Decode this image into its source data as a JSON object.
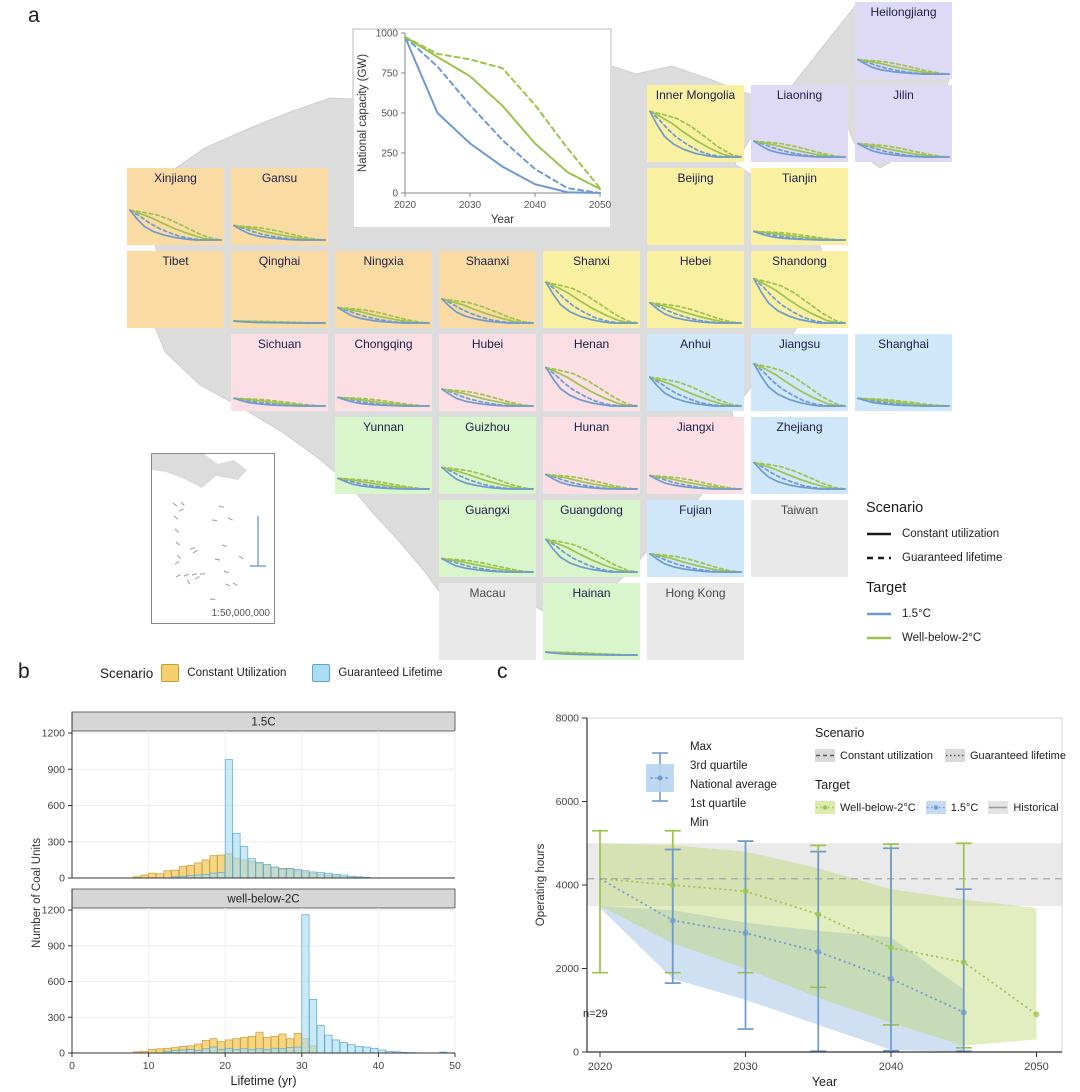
{
  "figure": {
    "panel_a_label": "a",
    "panel_b_label": "b",
    "panel_c_label": "c"
  },
  "colors": {
    "target_blue": "#6f9ad0",
    "target_green": "#9dc34c",
    "map_gray": "#dcdcdc",
    "region_fills": {
      "northwest": "#fbdba4",
      "north": "#f9f0a2",
      "northeast": "#ded9f4",
      "central": "#fbdfe4",
      "east": "#cfe7f8",
      "south": "#d9f5cc",
      "other": "#e9e9e9"
    },
    "hist_orange_fill": "#f5cf6e",
    "hist_orange_stroke": "#c79b33",
    "hist_blue_fill": "#aadcf2",
    "hist_blue_stroke": "#58a8cf",
    "strip_gray": "#d6d6d6",
    "historical_gray": "#d9d9d9"
  },
  "panel_a": {
    "legend": {
      "scenario_title": "Scenario",
      "items": [
        {
          "label": "Constant utilization",
          "style": "solid"
        },
        {
          "label": "Guaranteed lifetime",
          "style": "dashed"
        }
      ],
      "target_title": "Target",
      "targets": [
        {
          "label": "1.5°C",
          "color": "blue"
        },
        {
          "label": "Well-below-2°C",
          "color": "green"
        }
      ]
    },
    "inset_map": {
      "scale_label": "1:50,000,000"
    },
    "tiles": [
      {
        "name": "Heilongjiang",
        "group": "northeast",
        "col": 7,
        "row": 0,
        "mag": 0.3
      },
      {
        "name": "Inner Mongolia",
        "group": "north",
        "col": 5,
        "row": 1,
        "mag": 0.95
      },
      {
        "name": "Liaoning",
        "group": "northeast",
        "col": 6,
        "row": 1,
        "mag": 0.33
      },
      {
        "name": "Jilin",
        "group": "northeast",
        "col": 7,
        "row": 1,
        "mag": 0.28
      },
      {
        "name": "Xinjiang",
        "group": "northwest",
        "col": 0,
        "row": 2,
        "mag": 0.62
      },
      {
        "name": "Gansu",
        "group": "northwest",
        "col": 1,
        "row": 2,
        "mag": 0.3
      },
      {
        "name": "Beijing",
        "group": "north",
        "col": 5,
        "row": 2,
        "mag": 0
      },
      {
        "name": "Tianjin",
        "group": "north",
        "col": 6,
        "row": 2,
        "mag": 0.18
      },
      {
        "name": "Tibet",
        "group": "northwest",
        "col": 0,
        "row": 3,
        "mag": 0
      },
      {
        "name": "Qinghai",
        "group": "northwest",
        "col": 1,
        "row": 3,
        "mag": 0.04
      },
      {
        "name": "Ningxia",
        "group": "northwest",
        "col": 2,
        "row": 3,
        "mag": 0.32
      },
      {
        "name": "Shaanxi",
        "group": "northwest",
        "col": 3,
        "row": 3,
        "mag": 0.5
      },
      {
        "name": "Shanxi",
        "group": "north",
        "col": 4,
        "row": 3,
        "mag": 0.85
      },
      {
        "name": "Hebei",
        "group": "north",
        "col": 5,
        "row": 3,
        "mag": 0.42
      },
      {
        "name": "Shandong",
        "group": "north",
        "col": 6,
        "row": 3,
        "mag": 0.92
      },
      {
        "name": "Sichuan",
        "group": "central",
        "col": 1,
        "row": 4,
        "mag": 0.16
      },
      {
        "name": "Chongqing",
        "group": "central",
        "col": 2,
        "row": 4,
        "mag": 0.18
      },
      {
        "name": "Hubei",
        "group": "central",
        "col": 3,
        "row": 4,
        "mag": 0.35
      },
      {
        "name": "Henan",
        "group": "central",
        "col": 4,
        "row": 4,
        "mag": 0.8
      },
      {
        "name": "Anhui",
        "group": "east",
        "col": 5,
        "row": 4,
        "mag": 0.6
      },
      {
        "name": "Jiangsu",
        "group": "east",
        "col": 6,
        "row": 4,
        "mag": 0.88
      },
      {
        "name": "Shanghai",
        "group": "east",
        "col": 7,
        "row": 4,
        "mag": 0.16
      },
      {
        "name": "Yunnan",
        "group": "south",
        "col": 2,
        "row": 5,
        "mag": 0.22
      },
      {
        "name": "Guizhou",
        "group": "south",
        "col": 3,
        "row": 5,
        "mag": 0.45
      },
      {
        "name": "Hunan",
        "group": "central",
        "col": 4,
        "row": 5,
        "mag": 0.3
      },
      {
        "name": "Jiangxi",
        "group": "central",
        "col": 5,
        "row": 5,
        "mag": 0.28
      },
      {
        "name": "Zhejiang",
        "group": "east",
        "col": 6,
        "row": 5,
        "mag": 0.55
      },
      {
        "name": "Guangxi",
        "group": "south",
        "col": 3,
        "row": 6,
        "mag": 0.28
      },
      {
        "name": "Guangdong",
        "group": "south",
        "col": 4,
        "row": 6,
        "mag": 0.68
      },
      {
        "name": "Fujian",
        "group": "east",
        "col": 5,
        "row": 6,
        "mag": 0.38
      },
      {
        "name": "Taiwan",
        "group": "other",
        "col": 6,
        "row": 6,
        "mag": 0
      },
      {
        "name": "Macau",
        "group": "other",
        "col": 3,
        "row": 7,
        "mag": 0
      },
      {
        "name": "Hainan",
        "group": "south",
        "col": 4,
        "row": 7,
        "mag": 0.06
      },
      {
        "name": "Hong Kong",
        "group": "other",
        "col": 5,
        "row": 7,
        "mag": 0
      }
    ]
  },
  "panel_b": {
    "legend_title": "Scenario",
    "legend_items": [
      "Constant Utilization",
      "Guaranteed Lifetime"
    ]
  },
  "panel_c": {
    "legend": {
      "box_labels": [
        "Max",
        "3rd quartile",
        "National average",
        "1st quartile",
        "Min"
      ],
      "scenario_title": "Scenario",
      "scenario_items": [
        "Constant utilization",
        "Guaranteed lifetime"
      ],
      "target_title": "Target",
      "target_items": [
        "Well-below-2°C",
        "1.5°C",
        "Historical"
      ],
      "n_label": "n=29"
    }
  },
  "chart_data": [
    {
      "id": "national_capacity",
      "type": "line",
      "xlabel": "Year",
      "ylabel": "National capacity (GW)",
      "xlim": [
        2019,
        2051
      ],
      "ylim": [
        0,
        1000
      ],
      "xticks": [
        2020,
        2030,
        2040,
        2050
      ],
      "yticks": [
        0,
        250,
        500,
        750,
        1000
      ],
      "x": [
        2020,
        2025,
        2030,
        2035,
        2040,
        2045,
        2050
      ],
      "series": [
        {
          "name": "1.5C constant utilization",
          "color": "blue",
          "dash": "solid",
          "values": [
            975,
            500,
            310,
            165,
            55,
            5,
            0
          ]
        },
        {
          "name": "1.5C guaranteed lifetime",
          "color": "blue",
          "dash": "dashed",
          "values": [
            975,
            790,
            550,
            330,
            150,
            30,
            0
          ]
        },
        {
          "name": "well-below-2C constant utilization",
          "color": "green",
          "dash": "solid",
          "values": [
            975,
            850,
            730,
            545,
            310,
            130,
            25
          ]
        },
        {
          "name": "well-below-2C guaranteed lifetime",
          "color": "green",
          "dash": "dashed",
          "values": [
            975,
            870,
            835,
            780,
            550,
            280,
            30
          ]
        }
      ]
    },
    {
      "id": "lifetime_histograms",
      "type": "bar",
      "xlabel": "Lifetime (yr)",
      "ylabel": "Number of Coal Units",
      "xlim": [
        0,
        50
      ],
      "ylim": [
        0,
        1200
      ],
      "xticks": [
        0,
        10,
        20,
        30,
        40,
        50
      ],
      "yticks": [
        0,
        300,
        600,
        900,
        1200
      ],
      "bin_width": 1,
      "facets": [
        {
          "label": "1.5C",
          "series": [
            {
              "name": "Constant Utilization",
              "color": "orange",
              "bin_start": 8,
              "values": [
                10,
                25,
                40,
                35,
                60,
                65,
                95,
                105,
                125,
                150,
                185,
                190,
                200,
                165,
                150,
                140,
                120,
                110,
                90,
                80,
                70,
                60,
                50,
                40,
                30,
                20,
                15,
                10,
                5,
                5
              ]
            },
            {
              "name": "Guaranteed Lifetime",
              "color": "blue",
              "bin_start": 13,
              "values": [
                10,
                15,
                20,
                25,
                30,
                40,
                45,
                980,
                370,
                260,
                160,
                130,
                110,
                90,
                75,
                80,
                70,
                60,
                50,
                45,
                40,
                30,
                25,
                15,
                10,
                5
              ]
            }
          ]
        },
        {
          "label": "well-below-2C",
          "series": [
            {
              "name": "Constant Utilization",
              "color": "orange",
              "bin_start": 8,
              "values": [
                10,
                15,
                30,
                35,
                40,
                45,
                55,
                60,
                75,
                105,
                120,
                95,
                110,
                120,
                130,
                140,
                175,
                130,
                140,
                160,
                120,
                165,
                120,
                60
              ]
            },
            {
              "name": "Guaranteed Lifetime",
              "color": "blue",
              "bin_start": 12,
              "values": [
                15,
                20,
                25,
                30,
                20,
                35,
                50,
                30,
                40,
                30,
                35,
                30,
                35,
                30,
                40,
                35,
                45,
                50,
                1160,
                450,
                230,
                150,
                110,
                90,
                70,
                55,
                50,
                40,
                25,
                15,
                10,
                5,
                3,
                0,
                0,
                0,
                8
              ]
            }
          ]
        }
      ]
    },
    {
      "id": "operating_hours",
      "type": "line",
      "xlabel": "Year",
      "ylabel": "Operating hours",
      "xlim": [
        2019,
        2051
      ],
      "ylim": [
        0,
        8000
      ],
      "xticks": [
        2020,
        2030,
        2040,
        2050
      ],
      "yticks": [
        0,
        2000,
        4000,
        6000,
        8000
      ],
      "x": [
        2020,
        2025,
        2030,
        2035,
        2040,
        2045,
        2050
      ],
      "historical": {
        "average": 4150,
        "band_low": 3500,
        "band_high": 5000
      },
      "series": [
        {
          "name": "Well-below-2C",
          "color": "green",
          "avg": [
            4150,
            4000,
            3850,
            3300,
            2500,
            2150,
            900
          ],
          "whisker_low": [
            1900,
            1900,
            1900,
            1550,
            650,
            100,
            null
          ],
          "whisker_high": [
            5300,
            5300,
            5050,
            4950,
            4980,
            5000,
            null
          ],
          "band_high": [
            5000,
            4950,
            4800,
            4400,
            3900,
            3650,
            3450
          ],
          "band_low": [
            3500,
            2600,
            2000,
            1300,
            700,
            150,
            300
          ]
        },
        {
          "name": "1.5C",
          "color": "blue",
          "avg": [
            4150,
            3150,
            2850,
            2400,
            1750,
            950,
            null
          ],
          "whisker_low": [
            null,
            1650,
            550,
            20,
            30,
            20,
            null
          ],
          "whisker_high": [
            null,
            4850,
            5050,
            4800,
            4880,
            3900,
            null
          ],
          "band_high": [
            3500,
            3400,
            3100,
            2900,
            2750,
            1500,
            null
          ],
          "band_low": [
            3450,
            1750,
            1250,
            650,
            50,
            0,
            null
          ]
        }
      ],
      "annotation": "n=29"
    }
  ]
}
